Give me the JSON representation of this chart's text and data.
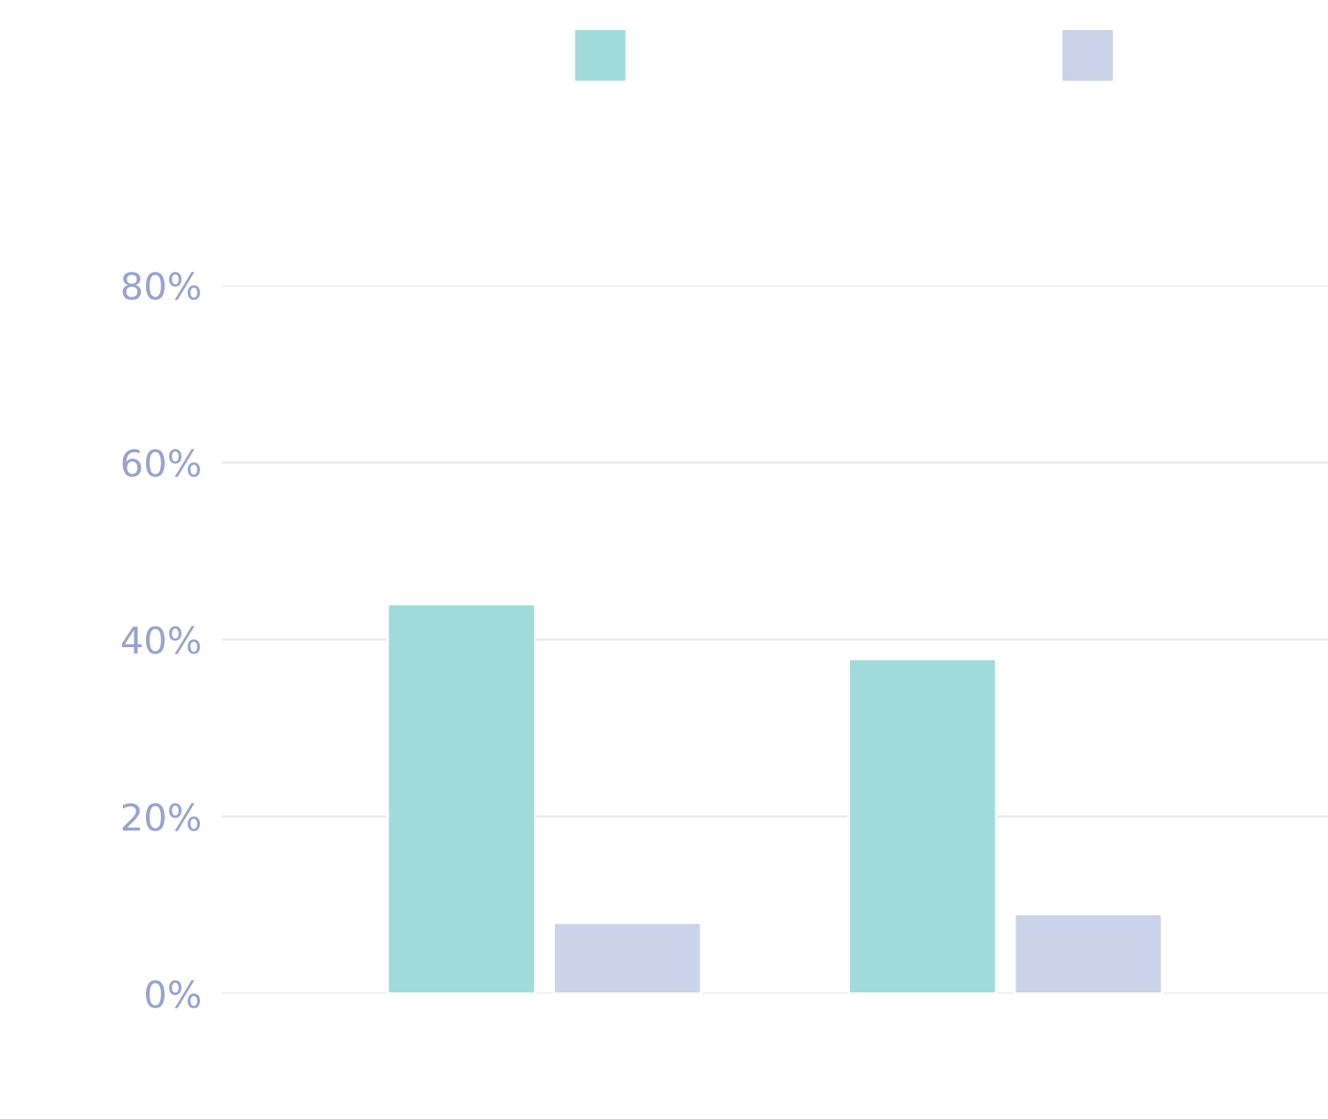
{
  "chart_data": {
    "type": "bar",
    "categories": [
      null,
      null
    ],
    "series": [
      {
        "color": "#9fdbda",
        "values": [
          44,
          37.8
        ]
      },
      {
        "color": "#cbd3ea",
        "values": [
          8,
          9
        ]
      }
    ],
    "ylim": [
      0,
      80
    ],
    "yticks": [
      {
        "value": 0,
        "label": "0%"
      },
      {
        "value": 20,
        "label": "20%"
      },
      {
        "value": 40,
        "label": "40%"
      },
      {
        "value": 60,
        "label": "60%"
      },
      {
        "value": 80,
        "label": "80%"
      }
    ],
    "grid": "y"
  }
}
